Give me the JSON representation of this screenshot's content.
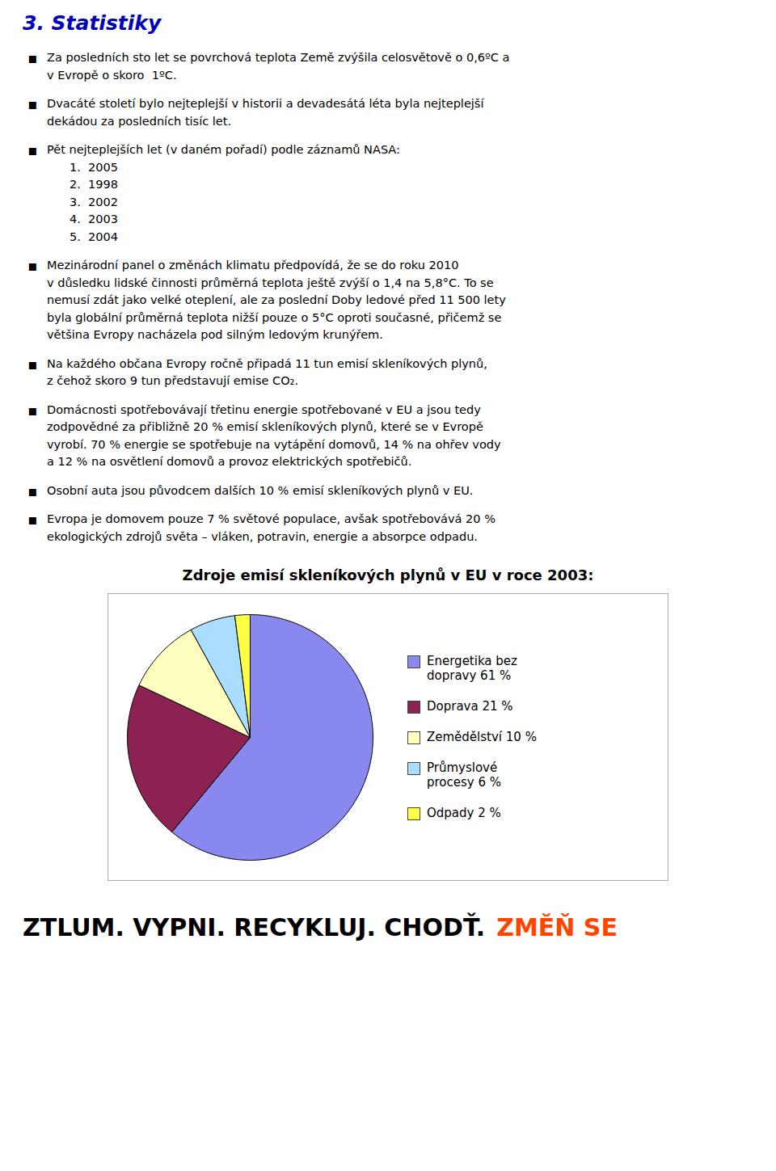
{
  "chart_data": {
    "type": "pie",
    "title": "Zdroje emisí skleníkových plynů v EU v roce 2003:",
    "categories": [
      "Energetika bez\ndopravy 61 %",
      "Doprava 21 %",
      "Zemědělství 10 %",
      "Průmyslové\nprocesy 6 %",
      "Odpady 2 %"
    ],
    "values": [
      61,
      21,
      10,
      6,
      2
    ],
    "colors": [
      "#8888EE",
      "#8B2252",
      "#FFFFC0",
      "#AADDFF",
      "#FFFF44"
    ],
    "legend": "right",
    "annotations": [
      "3. Statistiky",
      [
        "Za posledních sto let se povrchová teplota Země zvýšila celosvětově o 0,6ºC a",
        "v Evropě o skoro  1ºC."
      ],
      [
        "Dvacáté století bylo nejteplejší v historii a devadesátá léta byla nejteplejší",
        "dekádou za posledních tisíc let."
      ],
      [
        "Pět nejteplejších let (v daném pořadí) podle záznamů NASA:",
        "1.  2005",
        "2.  1998",
        "3.  2002",
        "4.  2003",
        "5.  2004"
      ],
      [
        "Mezinárodní panel o změnách klimatu předpovídá, že se do roku 2010",
        "v důsledku lidské činnosti průměrná teplota ještě zvýší o 1,4 na 5,8°C. To se",
        "nemusí zdát jako velké oteplení, ale za poslední Doby ledové před 11 500 lety",
        "byla globální průměrná teplota nižší pouze o 5°C oproti současné, přičemž se",
        "většina Evropy nacházela pod silným ledovým krunýřem."
      ],
      [
        "Na každého občana Evropy ročně připadá 11 tun emisí skleníkových plynů,",
        "z čehož skoro 9 tun představují emise CO₂."
      ],
      [
        "Domácnosti spotřebovávají třetinu energie spotřebované v EU a jsou tedy",
        "zodpovědné za přibližně 20 % emisí skleníkových plynů, které se v Evropě",
        "vyrobí. 70 % energie se spotřebuje na vytápění domovů, 14 % na ohřev vody",
        "a 12 % na osvětlení domovů a provoz elektrických spotřebičů."
      ],
      [
        "Osobní auta jsou původcem dalších 10 % emisí skleníkových plynů v EU."
      ],
      [
        "Evropa je domovem pouze 7 % světové populace, avšak spotřebovává 20 %",
        "ekologických zdrojů světa – vláken, potravin, energie a absorpce odpadu."
      ],
      "ZTLUM. VYPNI. RECYKLUJ. CHODŤ.",
      "ZMĔŇ SE"
    ]
  }
}
